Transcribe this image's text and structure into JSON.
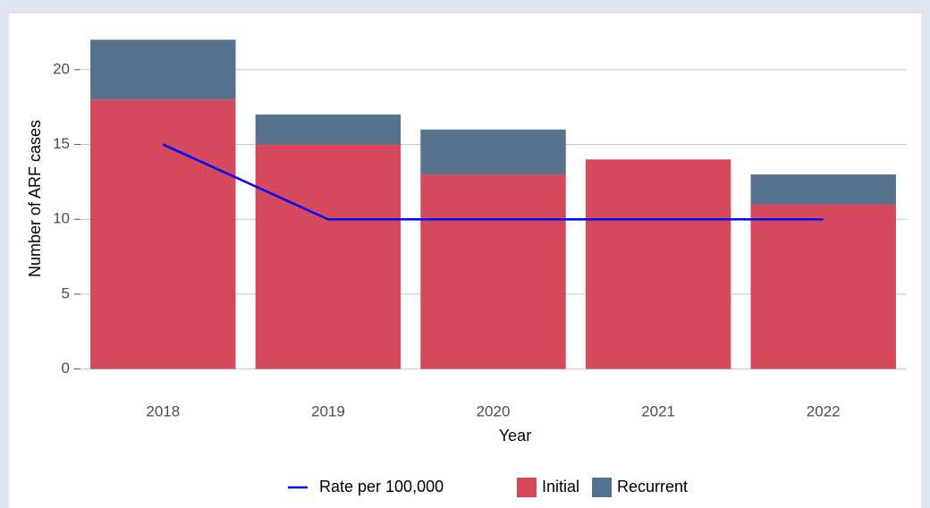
{
  "chart_data": {
    "type": "bar",
    "stacked": true,
    "x_label": "Year",
    "y_label": "Number of ARF cases",
    "categories": [
      "2018",
      "2019",
      "2020",
      "2021",
      "2022"
    ],
    "series": [
      {
        "name": "Initial",
        "type": "bar",
        "color": "#d4495c",
        "values": [
          18,
          15,
          13,
          14,
          11
        ]
      },
      {
        "name": "Recurrent",
        "type": "bar",
        "color": "#56728f",
        "values": [
          4,
          2,
          3,
          0,
          2
        ]
      },
      {
        "name": "Rate per 100,000",
        "type": "line",
        "color": "#0000ff",
        "values": [
          15,
          10,
          10,
          10,
          10
        ]
      }
    ],
    "ylim": [
      -1.1,
      23.1
    ],
    "yticks": [
      0,
      5,
      10,
      15,
      20
    ],
    "grid": true,
    "legend": "bottom"
  }
}
